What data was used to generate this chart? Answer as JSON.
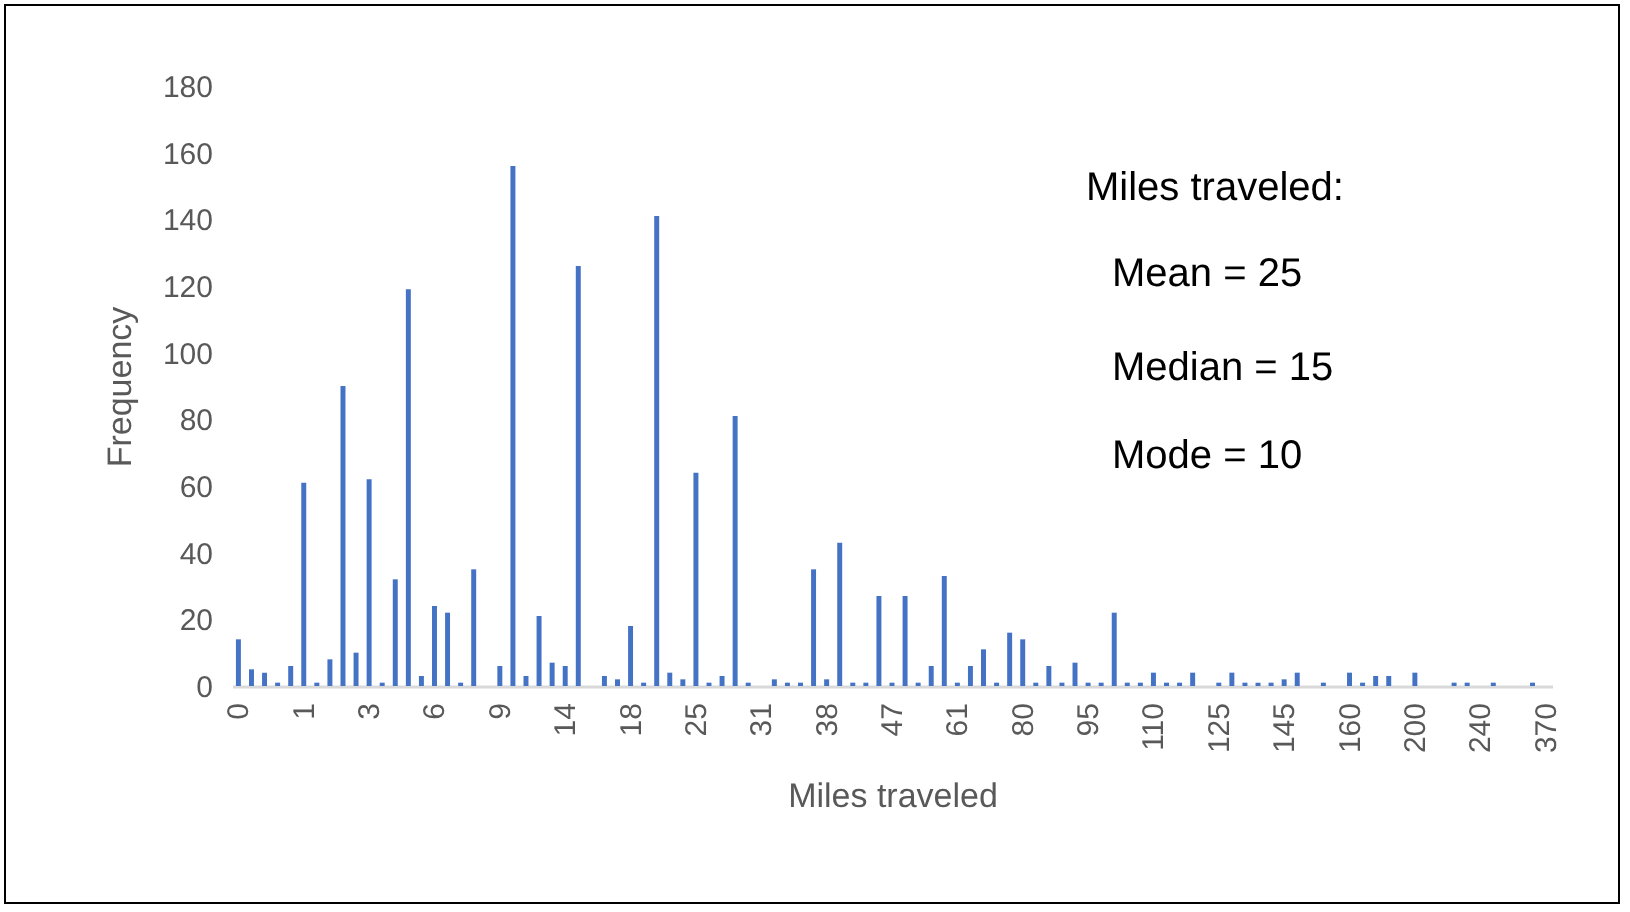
{
  "chart_data": {
    "type": "bar",
    "xlabel": "Miles traveled",
    "ylabel": "Frequency",
    "categories": [
      "0",
      null,
      null,
      null,
      null,
      "1",
      null,
      null,
      null,
      null,
      "3",
      null,
      null,
      null,
      null,
      "6",
      null,
      null,
      null,
      null,
      "9",
      null,
      null,
      null,
      null,
      "14",
      null,
      null,
      null,
      null,
      "18",
      null,
      null,
      null,
      null,
      "25",
      null,
      null,
      null,
      null,
      "31",
      null,
      null,
      null,
      null,
      "38",
      null,
      null,
      null,
      null,
      "47",
      null,
      null,
      null,
      null,
      "61",
      null,
      null,
      null,
      null,
      "80",
      null,
      null,
      null,
      null,
      "95",
      null,
      null,
      null,
      null,
      "110",
      null,
      null,
      null,
      null,
      "125",
      null,
      null,
      null,
      null,
      "145",
      null,
      null,
      null,
      null,
      "160",
      null,
      null,
      null,
      null,
      "200",
      null,
      null,
      null,
      null,
      "240",
      null,
      null,
      null,
      null,
      "370"
    ],
    "values": [
      14,
      5,
      4,
      1,
      6,
      61,
      1,
      8,
      90,
      10,
      62,
      1,
      32,
      119,
      3,
      24,
      22,
      1,
      35,
      0,
      6,
      156,
      3,
      21,
      7,
      6,
      126,
      0,
      3,
      2,
      18,
      1,
      141,
      4,
      2,
      64,
      1,
      3,
      81,
      1,
      0,
      2,
      1,
      1,
      35,
      2,
      43,
      1,
      1,
      27,
      1,
      27,
      1,
      6,
      33,
      1,
      6,
      11,
      1,
      16,
      14,
      1,
      6,
      1,
      7,
      1,
      1,
      22,
      1,
      1,
      4,
      1,
      1,
      4,
      0,
      1,
      4,
      1,
      1,
      1,
      2,
      4,
      0,
      1,
      0,
      4,
      1,
      3,
      3,
      0,
      4,
      0,
      0,
      1,
      1,
      0,
      1,
      0,
      0,
      1,
      0
    ],
    "color": "#4472c4",
    "ylim": [
      0,
      180
    ],
    "yticks": [
      0,
      20,
      40,
      60,
      80,
      100,
      120,
      140,
      160,
      180
    ],
    "grid": false,
    "annotations": [
      "Miles traveled:",
      "Mean = 25",
      "Median = 15",
      "Mode = 10"
    ]
  }
}
